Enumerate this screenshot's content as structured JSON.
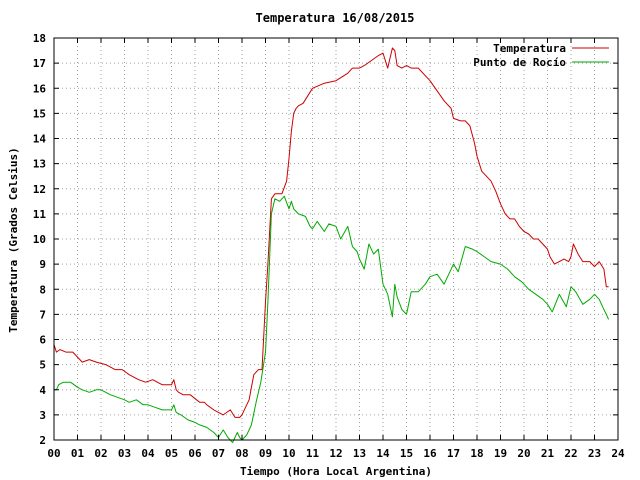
{
  "chart_data": {
    "type": "line",
    "title": "Temperatura 16/08/2015",
    "xlabel": "Tiempo (Hora Local Argentina)",
    "ylabel": "Temperatura (Grados Celsius)",
    "xlim": [
      0,
      24
    ],
    "ylim": [
      2,
      18
    ],
    "x_ticks": [
      {
        "value": 0,
        "label": "00"
      },
      {
        "value": 1,
        "label": "01"
      },
      {
        "value": 2,
        "label": "02"
      },
      {
        "value": 3,
        "label": "03"
      },
      {
        "value": 4,
        "label": "04"
      },
      {
        "value": 5,
        "label": "05"
      },
      {
        "value": 6,
        "label": "06"
      },
      {
        "value": 7,
        "label": "07"
      },
      {
        "value": 8,
        "label": "08"
      },
      {
        "value": 9,
        "label": "09"
      },
      {
        "value": 10,
        "label": "10"
      },
      {
        "value": 11,
        "label": "11"
      },
      {
        "value": 12,
        "label": "12"
      },
      {
        "value": 13,
        "label": "13"
      },
      {
        "value": 14,
        "label": "14"
      },
      {
        "value": 15,
        "label": "15"
      },
      {
        "value": 16,
        "label": "16"
      },
      {
        "value": 17,
        "label": "17"
      },
      {
        "value": 18,
        "label": "18"
      },
      {
        "value": 19,
        "label": "19"
      },
      {
        "value": 20,
        "label": "20"
      },
      {
        "value": 21,
        "label": "21"
      },
      {
        "value": 22,
        "label": "22"
      },
      {
        "value": 23,
        "label": "23"
      },
      {
        "value": 24,
        "label": "24"
      }
    ],
    "y_ticks": [
      {
        "value": 2,
        "label": "2"
      },
      {
        "value": 3,
        "label": "3"
      },
      {
        "value": 4,
        "label": "4"
      },
      {
        "value": 5,
        "label": "5"
      },
      {
        "value": 6,
        "label": "6"
      },
      {
        "value": 7,
        "label": "7"
      },
      {
        "value": 8,
        "label": "8"
      },
      {
        "value": 9,
        "label": "9"
      },
      {
        "value": 10,
        "label": "10"
      },
      {
        "value": 11,
        "label": "11"
      },
      {
        "value": 12,
        "label": "12"
      },
      {
        "value": 13,
        "label": "13"
      },
      {
        "value": 14,
        "label": "14"
      },
      {
        "value": 15,
        "label": "15"
      },
      {
        "value": 16,
        "label": "16"
      },
      {
        "value": 17,
        "label": "17"
      },
      {
        "value": 18,
        "label": "18"
      }
    ],
    "grid": true,
    "legend_position": "top-right",
    "series": [
      {
        "name": "Temperatura",
        "color": "#cc0000",
        "x": [
          0.0,
          0.1,
          0.25,
          0.5,
          0.8,
          1.0,
          1.2,
          1.5,
          1.8,
          2.2,
          2.6,
          2.9,
          3.2,
          3.6,
          3.9,
          4.2,
          4.6,
          5.0,
          5.1,
          5.2,
          5.3,
          5.5,
          5.8,
          6.2,
          6.4,
          6.5,
          6.8,
          7.0,
          7.2,
          7.5,
          7.7,
          7.9,
          8.0,
          8.1,
          8.3,
          8.5,
          8.7,
          8.85,
          9.0,
          9.1,
          9.25,
          9.4,
          9.5,
          9.7,
          9.9,
          10.0,
          10.1,
          10.2,
          10.3,
          10.4,
          10.6,
          11.0,
          11.5,
          12.0,
          12.5,
          12.7,
          13.0,
          13.2,
          13.5,
          13.8,
          14.0,
          14.2,
          14.4,
          14.5,
          14.6,
          14.8,
          15.0,
          15.2,
          15.5,
          15.8,
          16.0,
          16.3,
          16.6,
          16.9,
          17.0,
          17.3,
          17.5,
          17.7,
          17.9,
          18.0,
          18.2,
          18.4,
          18.6,
          18.8,
          19.0,
          19.2,
          19.4,
          19.6,
          19.8,
          20.0,
          20.2,
          20.4,
          20.6,
          21.0,
          21.1,
          21.3,
          21.5,
          21.7,
          21.9,
          22.0,
          22.1,
          22.3,
          22.5,
          22.8,
          23.0,
          23.2,
          23.4,
          23.5,
          23.6
        ],
        "values": [
          5.8,
          5.5,
          5.6,
          5.5,
          5.5,
          5.3,
          5.1,
          5.2,
          5.1,
          5.0,
          4.8,
          4.8,
          4.6,
          4.4,
          4.3,
          4.4,
          4.2,
          4.2,
          4.4,
          4.0,
          3.9,
          3.8,
          3.8,
          3.5,
          3.5,
          3.4,
          3.2,
          3.1,
          3.0,
          3.2,
          2.9,
          2.9,
          3.0,
          3.2,
          3.6,
          4.6,
          4.8,
          4.8,
          7.5,
          9.0,
          11.6,
          11.8,
          11.8,
          11.8,
          12.3,
          13.2,
          14.3,
          15.0,
          15.2,
          15.3,
          15.4,
          16.0,
          16.2,
          16.3,
          16.6,
          16.8,
          16.8,
          16.9,
          17.1,
          17.3,
          17.4,
          16.8,
          17.6,
          17.5,
          16.9,
          16.8,
          16.9,
          16.8,
          16.8,
          16.5,
          16.3,
          15.9,
          15.5,
          15.2,
          14.8,
          14.7,
          14.7,
          14.5,
          13.8,
          13.3,
          12.7,
          12.5,
          12.3,
          11.9,
          11.4,
          11.0,
          10.8,
          10.8,
          10.5,
          10.3,
          10.2,
          10.0,
          10.0,
          9.6,
          9.3,
          9.0,
          9.1,
          9.2,
          9.1,
          9.3,
          9.8,
          9.4,
          9.1,
          9.1,
          8.9,
          9.1,
          8.8,
          8.1,
          8.1
        ]
      },
      {
        "name": "Punto de Rocío",
        "color": "#00aa00",
        "x": [
          0.0,
          0.1,
          0.2,
          0.4,
          0.7,
          1.0,
          1.2,
          1.5,
          1.8,
          2.0,
          2.4,
          2.7,
          3.0,
          3.2,
          3.5,
          3.8,
          4.0,
          4.3,
          4.6,
          5.0,
          5.1,
          5.2,
          5.4,
          5.7,
          6.0,
          6.2,
          6.5,
          6.8,
          7.0,
          7.2,
          7.4,
          7.6,
          7.8,
          7.9,
          8.0,
          8.2,
          8.4,
          8.6,
          8.8,
          9.0,
          9.1,
          9.25,
          9.4,
          9.6,
          9.8,
          10.0,
          10.1,
          10.2,
          10.4,
          10.7,
          10.9,
          11.0,
          11.2,
          11.5,
          11.7,
          12.0,
          12.2,
          12.5,
          12.7,
          12.9,
          13.0,
          13.2,
          13.4,
          13.6,
          13.8,
          14.0,
          14.2,
          14.4,
          14.5,
          14.6,
          14.8,
          15.0,
          15.2,
          15.5,
          15.8,
          16.0,
          16.3,
          16.6,
          17.0,
          17.2,
          17.5,
          17.8,
          18.0,
          18.3,
          18.6,
          19.0,
          19.3,
          19.6,
          19.9,
          20.0,
          20.2,
          20.5,
          20.8,
          21.0,
          21.2,
          21.5,
          21.8,
          22.0,
          22.2,
          22.5,
          22.8,
          23.0,
          23.2,
          23.4,
          23.5,
          23.6
        ],
        "values": [
          4.0,
          4.0,
          4.2,
          4.3,
          4.3,
          4.1,
          4.0,
          3.9,
          4.0,
          4.0,
          3.8,
          3.7,
          3.6,
          3.5,
          3.6,
          3.4,
          3.4,
          3.3,
          3.2,
          3.2,
          3.4,
          3.1,
          3.0,
          2.8,
          2.7,
          2.6,
          2.5,
          2.3,
          2.1,
          2.4,
          2.1,
          1.9,
          2.3,
          2.1,
          2.0,
          2.2,
          2.6,
          3.5,
          4.3,
          5.5,
          7.5,
          11.0,
          11.6,
          11.5,
          11.7,
          11.2,
          11.5,
          11.2,
          11.0,
          10.9,
          10.5,
          10.4,
          10.7,
          10.3,
          10.6,
          10.5,
          10.0,
          10.5,
          9.7,
          9.5,
          9.2,
          8.8,
          9.8,
          9.4,
          9.6,
          8.2,
          7.8,
          6.9,
          8.2,
          7.7,
          7.2,
          7.0,
          7.9,
          7.9,
          8.2,
          8.5,
          8.6,
          8.2,
          9.0,
          8.7,
          9.7,
          9.6,
          9.5,
          9.3,
          9.1,
          9.0,
          8.8,
          8.5,
          8.3,
          8.2,
          8.0,
          7.8,
          7.6,
          7.4,
          7.1,
          7.8,
          7.3,
          8.1,
          7.9,
          7.4,
          7.6,
          7.8,
          7.6,
          7.2,
          7.0,
          6.8
        ]
      }
    ]
  }
}
